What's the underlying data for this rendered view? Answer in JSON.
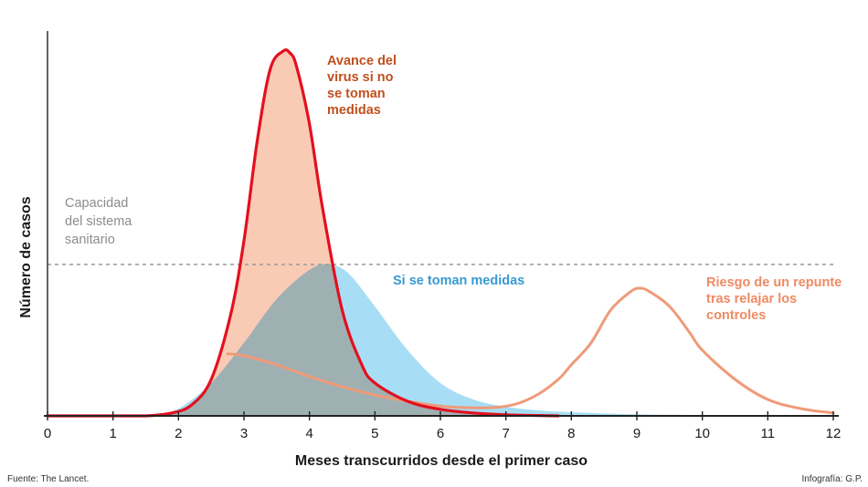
{
  "chart_data": {
    "type": "area",
    "xlabel": "Meses transcurridos desde el primer caso",
    "ylabel": "Número de casos",
    "xlim": [
      0,
      12
    ],
    "xticks": [
      "0",
      "1",
      "2",
      "3",
      "4",
      "5",
      "6",
      "7",
      "8",
      "9",
      "10",
      "11",
      "12"
    ],
    "ylim": [
      0,
      1
    ],
    "capacity": {
      "label": "Capacidad\ndel sistema\nsanitario",
      "value": 0.415,
      "color": "#999999"
    },
    "series": [
      {
        "name": "Si se toman medidas",
        "color": "#a8def5",
        "x": [
          0,
          1,
          1.6,
          2,
          2.5,
          3,
          3.5,
          4,
          4.3,
          4.6,
          5,
          5.5,
          6,
          6.5,
          7,
          7.5,
          8,
          9,
          10,
          10.5
        ],
        "y": [
          0,
          0,
          0,
          0.02,
          0.09,
          0.2,
          0.32,
          0.4,
          0.415,
          0.39,
          0.3,
          0.18,
          0.09,
          0.045,
          0.025,
          0.015,
          0.01,
          0.004,
          0.002,
          0
        ]
      },
      {
        "name": "Avance del\nvirus si no\nse toman\nmedidas",
        "color": "#e3101f",
        "fill": "#f9cbb5",
        "x": [
          0,
          1,
          1.5,
          1.9,
          2.2,
          2.5,
          2.8,
          3,
          3.2,
          3.4,
          3.6,
          3.7,
          3.8,
          4,
          4.2,
          4.5,
          4.8,
          5,
          5.5,
          6,
          6.5,
          7,
          7.5,
          7.8
        ],
        "y": [
          0,
          0,
          0,
          0.008,
          0.03,
          0.1,
          0.28,
          0.48,
          0.75,
          0.95,
          1.0,
          0.995,
          0.96,
          0.8,
          0.57,
          0.29,
          0.14,
          0.09,
          0.04,
          0.018,
          0.008,
          0.003,
          0.001,
          0
        ]
      },
      {
        "name": "Riesgo de un repunte\ntras relajar los\ncontroles",
        "color": "#ef9a79",
        "x": [
          2.75,
          3,
          3.5,
          4,
          4.5,
          5,
          5.5,
          6,
          6.5,
          6.9,
          7.2,
          7.5,
          7.8,
          8,
          8.3,
          8.6,
          8.9,
          9.05,
          9.2,
          9.5,
          9.8,
          10,
          10.5,
          11,
          11.5,
          12
        ],
        "y": [
          0.17,
          0.165,
          0.14,
          0.108,
          0.08,
          0.057,
          0.04,
          0.027,
          0.022,
          0.024,
          0.035,
          0.06,
          0.1,
          0.14,
          0.2,
          0.29,
          0.34,
          0.35,
          0.34,
          0.3,
          0.23,
          0.18,
          0.1,
          0.045,
          0.02,
          0.008
        ]
      }
    ]
  },
  "annotations": {
    "virus": "Avance del\nvirus si no\nse toman\nmedidas",
    "medidas": "Si se toman medidas",
    "repunte": "Riesgo de un repunte\ntras relajar los\ncontroles"
  },
  "footer": {
    "source": "Fuente: The Lancet.",
    "credit": "Infografía: G.P."
  }
}
